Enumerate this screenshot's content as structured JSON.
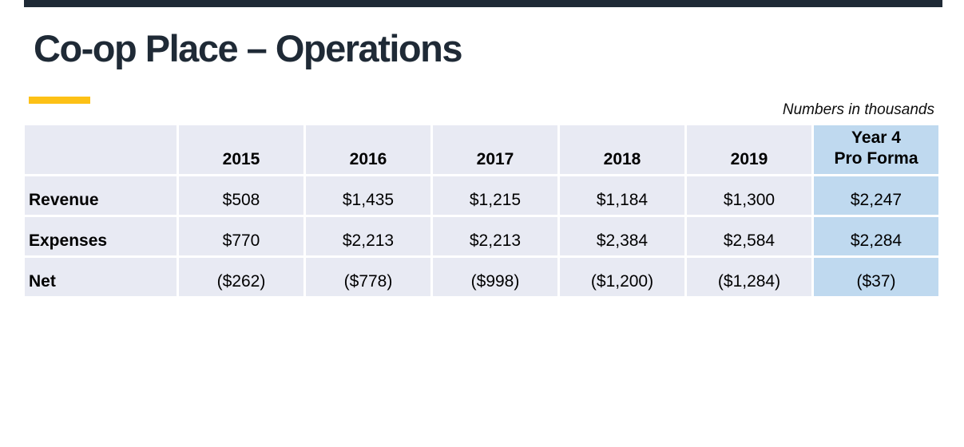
{
  "slide": {
    "title": "Co-op Place – Operations",
    "note": "Numbers in thousands"
  },
  "table": {
    "header": {
      "years": [
        "2015",
        "2016",
        "2017",
        "2018",
        "2019"
      ],
      "year4_line1": "Year 4",
      "year4_line2": "Pro Forma"
    },
    "rows": [
      {
        "label": "Revenue",
        "values": [
          "$508",
          "$1,435",
          "$1,215",
          "$1,184",
          "$1,300"
        ],
        "year4": "$2,247"
      },
      {
        "label": "Expenses",
        "values": [
          "$770",
          "$2,213",
          "$2,213",
          "$2,384",
          "$2,584"
        ],
        "year4": "$2,284"
      },
      {
        "label": "Net",
        "values": [
          "($262)",
          "($778)",
          "($998)",
          "($1,200)",
          "($1,284)"
        ],
        "year4": "($37)"
      }
    ]
  },
  "colors": {
    "title_navy": "#1F2A36",
    "accent_yellow": "#FDC116",
    "row_background": "#E8EAF3",
    "proforma_highlight": "#BFD9EF",
    "text": "#000000"
  }
}
